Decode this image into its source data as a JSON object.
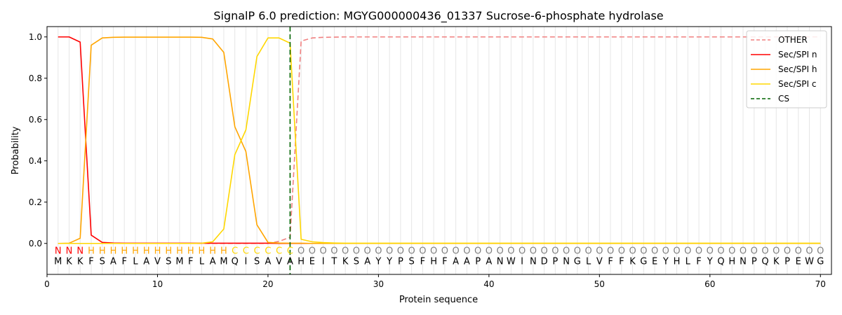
{
  "chart_data": {
    "type": "line",
    "title": "SignalP 6.0 prediction: MGYG000000436_01337 Sucrose-6-phosphate hydrolase",
    "xlabel": "Protein sequence",
    "ylabel": "Probability",
    "xlim": [
      0,
      71
    ],
    "ylim": [
      -0.15,
      1.05
    ],
    "xticks": [
      0,
      10,
      20,
      30,
      40,
      50,
      60,
      70
    ],
    "yticks": [
      0.0,
      0.2,
      0.4,
      0.6,
      0.8,
      1.0
    ],
    "grid": "vertical lines at each residue",
    "legend_position": "top-right",
    "sequence": [
      "M",
      "K",
      "K",
      "F",
      "S",
      "A",
      "F",
      "L",
      "A",
      "V",
      "S",
      "M",
      "F",
      "L",
      "A",
      "M",
      "Q",
      "I",
      "S",
      "A",
      "V",
      "A",
      "H",
      "E",
      "I",
      "T",
      "K",
      "S",
      "A",
      "Y",
      "Y",
      "P",
      "S",
      "F",
      "H",
      "F",
      "A",
      "A",
      "P",
      "A",
      "N",
      "W",
      "I",
      "N",
      "D",
      "P",
      "N",
      "G",
      "L",
      "V",
      "F",
      "F",
      "K",
      "G",
      "E",
      "Y",
      "H",
      "L",
      "F",
      "Y",
      "Q",
      "H",
      "N",
      "P",
      "Q",
      "K",
      "P",
      "E",
      "W",
      "G"
    ],
    "labels": [
      "N",
      "N",
      "N",
      "H",
      "H",
      "H",
      "H",
      "H",
      "H",
      "H",
      "H",
      "H",
      "H",
      "H",
      "H",
      "H",
      "C",
      "C",
      "C",
      "C",
      "C",
      "C",
      "O",
      "O",
      "O",
      "O",
      "O",
      "O",
      "O",
      "O",
      "O",
      "O",
      "O",
      "O",
      "O",
      "O",
      "O",
      "O",
      "O",
      "O",
      "O",
      "O",
      "O",
      "O",
      "O",
      "O",
      "O",
      "O",
      "O",
      "O",
      "O",
      "O",
      "O",
      "O",
      "O",
      "O",
      "O",
      "O",
      "O",
      "O",
      "O",
      "O",
      "O",
      "O",
      "O",
      "O",
      "O",
      "O",
      "O",
      "O"
    ],
    "label_colors": {
      "N": "#ff0000",
      "H": "#ffa500",
      "C": "#ffd700",
      "O": "#808080"
    },
    "x": [
      1,
      2,
      3,
      4,
      5,
      6,
      7,
      8,
      9,
      10,
      11,
      12,
      13,
      14,
      15,
      16,
      17,
      18,
      19,
      20,
      21,
      22,
      23,
      24,
      25,
      26,
      27,
      28,
      29,
      30,
      31,
      32,
      33,
      34,
      35,
      36,
      37,
      38,
      39,
      40,
      41,
      42,
      43,
      44,
      45,
      46,
      47,
      48,
      49,
      50,
      51,
      52,
      53,
      54,
      55,
      56,
      57,
      58,
      59,
      60,
      61,
      62,
      63,
      64,
      65,
      66,
      67,
      68,
      69,
      70
    ],
    "series": [
      {
        "name": "OTHER",
        "color": "#f08080",
        "dash": "dashed",
        "values": [
          0,
          0,
          0,
          0,
          0,
          0,
          0,
          0,
          0,
          0,
          0,
          0,
          0,
          0,
          0,
          0,
          0,
          0,
          0,
          0,
          0.01,
          0.03,
          0.98,
          0.995,
          0.998,
          0.999,
          1,
          1,
          1,
          1,
          1,
          1,
          1,
          1,
          1,
          1,
          1,
          1,
          1,
          1,
          1,
          1,
          1,
          1,
          1,
          1,
          1,
          1,
          1,
          1,
          1,
          1,
          1,
          1,
          1,
          1,
          1,
          1,
          1,
          1,
          1,
          1,
          1,
          1,
          1,
          1,
          1,
          1,
          1,
          1
        ]
      },
      {
        "name": "Sec/SPI n",
        "color": "#ff0000",
        "dash": "solid",
        "values": [
          1.0,
          1.0,
          0.975,
          0.04,
          0.005,
          0.002,
          0.001,
          0.001,
          0.001,
          0.001,
          0.001,
          0.001,
          0.001,
          0.001,
          0.001,
          0.001,
          0.001,
          0.001,
          0.001,
          0.001,
          0,
          0,
          0,
          0,
          0,
          0,
          0,
          0,
          0,
          0,
          0,
          0,
          0,
          0,
          0,
          0,
          0,
          0,
          0,
          0,
          0,
          0,
          0,
          0,
          0,
          0,
          0,
          0,
          0,
          0,
          0,
          0,
          0,
          0,
          0,
          0,
          0,
          0,
          0,
          0,
          0,
          0,
          0,
          0,
          0,
          0,
          0,
          0,
          0,
          0
        ]
      },
      {
        "name": "Sec/SPI h",
        "color": "#ffa500",
        "dash": "solid",
        "values": [
          0,
          0.001,
          0.025,
          0.96,
          0.995,
          0.998,
          0.999,
          0.999,
          0.999,
          0.999,
          0.999,
          0.999,
          0.999,
          0.998,
          0.99,
          0.925,
          0.565,
          0.445,
          0.09,
          0.005,
          0.002,
          0.001,
          0.001,
          0,
          0,
          0,
          0,
          0,
          0,
          0,
          0,
          0,
          0,
          0,
          0,
          0,
          0,
          0,
          0,
          0,
          0,
          0,
          0,
          0,
          0,
          0,
          0,
          0,
          0,
          0,
          0,
          0,
          0,
          0,
          0,
          0,
          0,
          0,
          0,
          0,
          0,
          0,
          0,
          0,
          0,
          0,
          0,
          0,
          0,
          0
        ]
      },
      {
        "name": "Sec/SPI c",
        "color": "#ffd700",
        "dash": "solid",
        "values": [
          0,
          0,
          0,
          0,
          0,
          0,
          0,
          0,
          0,
          0,
          0,
          0,
          0,
          0.001,
          0.008,
          0.07,
          0.43,
          0.55,
          0.905,
          0.995,
          0.995,
          0.97,
          0.02,
          0.008,
          0.004,
          0.002,
          0.001,
          0.001,
          0.001,
          0.001,
          0.001,
          0.001,
          0.001,
          0.001,
          0.001,
          0.001,
          0.001,
          0.001,
          0.001,
          0.001,
          0.001,
          0.001,
          0.001,
          0.001,
          0.001,
          0.001,
          0.001,
          0.001,
          0.001,
          0.001,
          0.001,
          0.001,
          0.001,
          0.001,
          0.001,
          0.001,
          0.001,
          0.001,
          0.001,
          0.001,
          0.001,
          0.001,
          0.001,
          0.001,
          0.001,
          0.001,
          0.001,
          0.001,
          0.001,
          0.001
        ]
      }
    ],
    "cs": {
      "name": "CS",
      "x": 22,
      "color": "#006400",
      "dash": "dashed"
    }
  }
}
